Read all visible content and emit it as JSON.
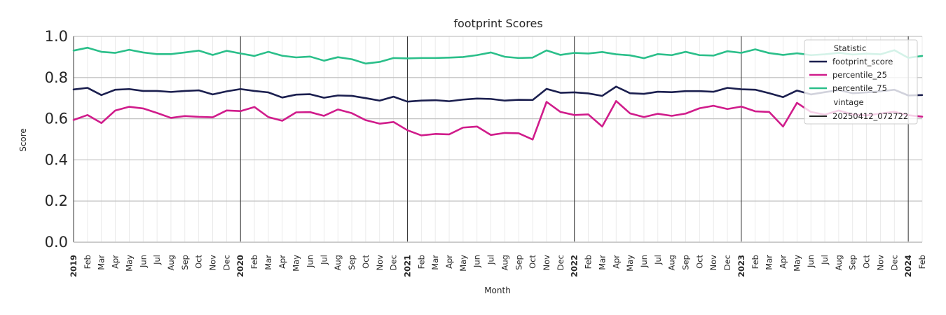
{
  "chart_data": {
    "type": "line",
    "title": "footprint Scores",
    "xlabel": "Month",
    "ylabel": "Score",
    "ylim": [
      0.0,
      1.0
    ],
    "yticks": [
      "0.0",
      "0.2",
      "0.4",
      "0.6",
      "0.8",
      "1.0"
    ],
    "grid": "on",
    "legend_placement": "top-right",
    "x_start": "2019-01",
    "x_end": "2024-02",
    "x": [
      "2019-01",
      "2019-02",
      "2019-03",
      "2019-04",
      "2019-05",
      "2019-06",
      "2019-07",
      "2019-08",
      "2019-09",
      "2019-10",
      "2019-11",
      "2019-12",
      "2020-01",
      "2020-02",
      "2020-03",
      "2020-04",
      "2020-05",
      "2020-06",
      "2020-07",
      "2020-08",
      "2020-09",
      "2020-10",
      "2020-11",
      "2020-12",
      "2021-01",
      "2021-02",
      "2021-03",
      "2021-04",
      "2021-05",
      "2021-06",
      "2021-07",
      "2021-08",
      "2021-09",
      "2021-10",
      "2021-11",
      "2021-12",
      "2022-01",
      "2022-02",
      "2022-03",
      "2022-04",
      "2022-05",
      "2022-06",
      "2022-07",
      "2022-08",
      "2022-09",
      "2022-10",
      "2022-11",
      "2022-12",
      "2023-01",
      "2023-02",
      "2023-03",
      "2023-04",
      "2023-05",
      "2023-06",
      "2023-07",
      "2023-08",
      "2023-09",
      "2023-10",
      "2023-11",
      "2023-12",
      "2024-01",
      "2024-02"
    ],
    "xtick_labels": [
      "2019",
      "Feb",
      "Mar",
      "Apr",
      "May",
      "Jun",
      "Jul",
      "Aug",
      "Sep",
      "Oct",
      "Nov",
      "Dec",
      "2020",
      "Feb",
      "Mar",
      "Apr",
      "May",
      "Jun",
      "Jul",
      "Aug",
      "Sep",
      "Oct",
      "Nov",
      "Dec",
      "2021",
      "Feb",
      "Mar",
      "Apr",
      "May",
      "Jun",
      "Jul",
      "Aug",
      "Sep",
      "Oct",
      "Nov",
      "Dec",
      "2022",
      "Feb",
      "Mar",
      "Apr",
      "May",
      "Jun",
      "Jul",
      "Aug",
      "Sep",
      "Oct",
      "Nov",
      "Dec",
      "2023",
      "Feb",
      "Mar",
      "Apr",
      "May",
      "Jun",
      "Jul",
      "Aug",
      "Sep",
      "Oct",
      "Nov",
      "Dec",
      "2024",
      "Feb"
    ],
    "year_labels": [
      "2019",
      "2020",
      "2021",
      "2022",
      "2023",
      "2024"
    ],
    "series": [
      {
        "name": "footprint_score",
        "color": "#1b1f4f",
        "values": [
          0.742,
          0.75,
          0.715,
          0.741,
          0.744,
          0.735,
          0.735,
          0.73,
          0.735,
          0.738,
          0.718,
          0.733,
          0.744,
          0.735,
          0.728,
          0.703,
          0.717,
          0.719,
          0.702,
          0.713,
          0.711,
          0.7,
          0.688,
          0.707,
          0.683,
          0.688,
          0.69,
          0.685,
          0.693,
          0.698,
          0.696,
          0.688,
          0.692,
          0.691,
          0.745,
          0.726,
          0.728,
          0.723,
          0.711,
          0.756,
          0.724,
          0.721,
          0.731,
          0.729,
          0.734,
          0.734,
          0.731,
          0.75,
          0.743,
          0.741,
          0.724,
          0.705,
          0.737,
          0.718,
          0.729,
          0.739,
          0.724,
          0.728,
          0.733,
          0.741,
          0.713,
          0.715
        ]
      },
      {
        "name": "percentile_25",
        "color": "#d01c8b",
        "values": [
          0.594,
          0.618,
          0.579,
          0.64,
          0.658,
          0.65,
          0.628,
          0.604,
          0.613,
          0.609,
          0.607,
          0.64,
          0.637,
          0.657,
          0.608,
          0.59,
          0.631,
          0.632,
          0.614,
          0.645,
          0.627,
          0.593,
          0.576,
          0.584,
          0.544,
          0.519,
          0.526,
          0.524,
          0.557,
          0.562,
          0.521,
          0.531,
          0.529,
          0.499,
          0.682,
          0.633,
          0.618,
          0.621,
          0.562,
          0.686,
          0.626,
          0.608,
          0.624,
          0.614,
          0.625,
          0.651,
          0.663,
          0.647,
          0.659,
          0.636,
          0.633,
          0.562,
          0.677,
          0.633,
          0.62,
          0.64,
          0.621,
          0.616,
          0.625,
          0.634,
          0.617,
          0.61
        ]
      },
      {
        "name": "percentile_75",
        "color": "#2bbf8a",
        "values": [
          0.931,
          0.945,
          0.925,
          0.92,
          0.935,
          0.922,
          0.914,
          0.914,
          0.922,
          0.931,
          0.91,
          0.93,
          0.917,
          0.905,
          0.925,
          0.906,
          0.898,
          0.902,
          0.882,
          0.899,
          0.889,
          0.868,
          0.876,
          0.895,
          0.893,
          0.895,
          0.895,
          0.897,
          0.9,
          0.909,
          0.922,
          0.901,
          0.895,
          0.897,
          0.932,
          0.91,
          0.92,
          0.917,
          0.924,
          0.913,
          0.908,
          0.894,
          0.914,
          0.909,
          0.925,
          0.909,
          0.907,
          0.928,
          0.92,
          0.937,
          0.919,
          0.91,
          0.918,
          0.909,
          0.913,
          0.92,
          0.912,
          0.916,
          0.913,
          0.933,
          0.896,
          0.905
        ]
      }
    ],
    "legend": {
      "title": "Statistic",
      "entries": [
        {
          "label": "footprint_score",
          "color": "#1b1f4f"
        },
        {
          "label": "percentile_25",
          "color": "#d01c8b"
        },
        {
          "label": "percentile_75",
          "color": "#2bbf8a"
        }
      ],
      "vintage_title": "vintage",
      "vintage_entries": [
        {
          "label": "20250412_072722",
          "color": "#262626"
        }
      ]
    }
  }
}
